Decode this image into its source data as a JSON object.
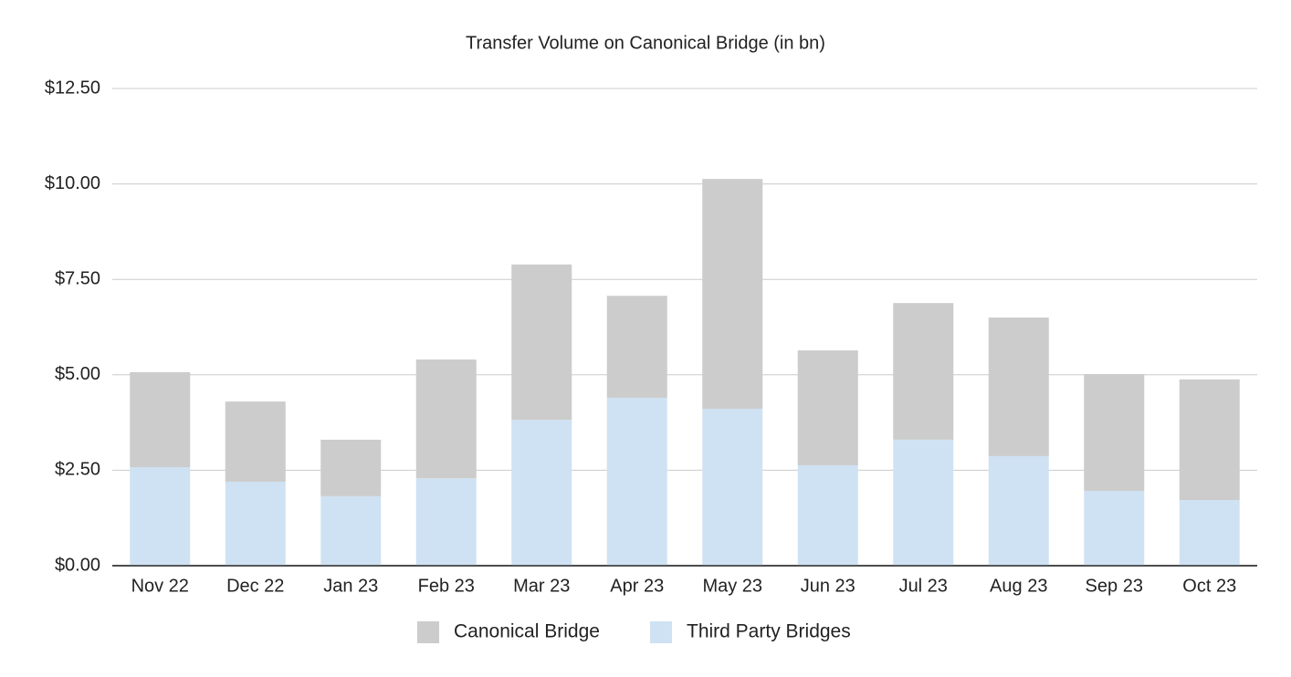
{
  "chart_data": {
    "type": "stacked_bar",
    "title": "Transfer Volume on Canonical Bridge (in bn)",
    "categories": [
      "Nov 22",
      "Dec 22",
      "Jan 23",
      "Feb 23",
      "Mar 23",
      "Apr 23",
      "May 23",
      "Jun 23",
      "Jul 23",
      "Aug 23",
      "Sep 23",
      "Oct 23"
    ],
    "series": [
      {
        "name": "Canonical Bridge",
        "color": "#cccccc",
        "values": [
          2.49,
          2.1,
          1.48,
          3.11,
          4.07,
          2.67,
          6.02,
          3.01,
          3.58,
          3.63,
          3.06,
          3.16
        ]
      },
      {
        "name": "Third Party Bridges",
        "color": "#cfe2f3",
        "values": [
          2.58,
          2.2,
          1.82,
          2.29,
          3.82,
          4.4,
          4.11,
          2.63,
          3.3,
          2.87,
          1.96,
          1.72
        ]
      }
    ],
    "ylim": [
      0,
      12.5
    ],
    "yticks": [
      {
        "value": 0,
        "label": "$0.00"
      },
      {
        "value": 2.5,
        "label": "$2.50"
      },
      {
        "value": 5,
        "label": "$5.00"
      },
      {
        "value": 7.5,
        "label": "$7.50"
      },
      {
        "value": 10,
        "label": "$10.00"
      },
      {
        "value": 12.5,
        "label": "$12.50"
      }
    ],
    "grid": true,
    "legend": "bottom"
  }
}
